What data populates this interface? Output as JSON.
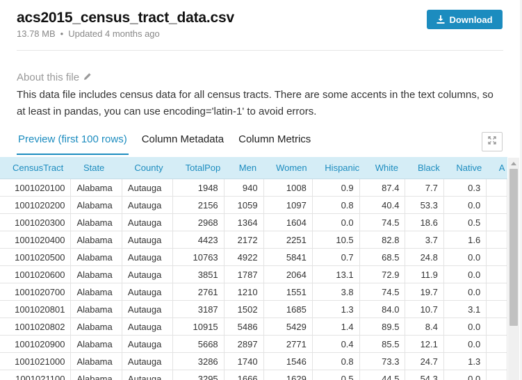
{
  "file": {
    "name": "acs2015_census_tract_data.csv",
    "size": "13.78 MB",
    "separator": "•",
    "updated": "Updated 4 months ago",
    "download_label": "Download"
  },
  "about": {
    "heading": "About this file",
    "description": "This data file includes census data for all census tracts. There are some accents in the text columns, so at least in pandas, you can use encoding='latin-1' to avoid errors."
  },
  "tabs": [
    {
      "label": "Preview (first 100 rows)",
      "active": true
    },
    {
      "label": "Column Metadata",
      "active": false
    },
    {
      "label": "Column Metrics",
      "active": false
    }
  ],
  "table": {
    "columns": [
      "CensusTract",
      "State",
      "County",
      "TotalPop",
      "Men",
      "Women",
      "Hispanic",
      "White",
      "Black",
      "Native",
      "A"
    ],
    "rows": [
      [
        "1001020100",
        "Alabama",
        "Autauga",
        "1948",
        "940",
        "1008",
        "0.9",
        "87.4",
        "7.7",
        "0.3",
        ""
      ],
      [
        "1001020200",
        "Alabama",
        "Autauga",
        "2156",
        "1059",
        "1097",
        "0.8",
        "40.4",
        "53.3",
        "0.0",
        ""
      ],
      [
        "1001020300",
        "Alabama",
        "Autauga",
        "2968",
        "1364",
        "1604",
        "0.0",
        "74.5",
        "18.6",
        "0.5",
        ""
      ],
      [
        "1001020400",
        "Alabama",
        "Autauga",
        "4423",
        "2172",
        "2251",
        "10.5",
        "82.8",
        "3.7",
        "1.6",
        ""
      ],
      [
        "1001020500",
        "Alabama",
        "Autauga",
        "10763",
        "4922",
        "5841",
        "0.7",
        "68.5",
        "24.8",
        "0.0",
        ""
      ],
      [
        "1001020600",
        "Alabama",
        "Autauga",
        "3851",
        "1787",
        "2064",
        "13.1",
        "72.9",
        "11.9",
        "0.0",
        ""
      ],
      [
        "1001020700",
        "Alabama",
        "Autauga",
        "2761",
        "1210",
        "1551",
        "3.8",
        "74.5",
        "19.7",
        "0.0",
        ""
      ],
      [
        "1001020801",
        "Alabama",
        "Autauga",
        "3187",
        "1502",
        "1685",
        "1.3",
        "84.0",
        "10.7",
        "3.1",
        ""
      ],
      [
        "1001020802",
        "Alabama",
        "Autauga",
        "10915",
        "5486",
        "5429",
        "1.4",
        "89.5",
        "8.4",
        "0.0",
        ""
      ],
      [
        "1001020900",
        "Alabama",
        "Autauga",
        "5668",
        "2897",
        "2771",
        "0.4",
        "85.5",
        "12.1",
        "0.0",
        ""
      ],
      [
        "1001021000",
        "Alabama",
        "Autauga",
        "3286",
        "1740",
        "1546",
        "0.8",
        "73.3",
        "24.7",
        "1.3",
        ""
      ],
      [
        "1001021100",
        "Alabama",
        "Autauga",
        "3295",
        "1666",
        "1629",
        "0.5",
        "44.5",
        "54.3",
        "0.0",
        ""
      ]
    ]
  },
  "colors": {
    "accent": "#1c8cbf",
    "header_bg": "#d5edf6"
  }
}
